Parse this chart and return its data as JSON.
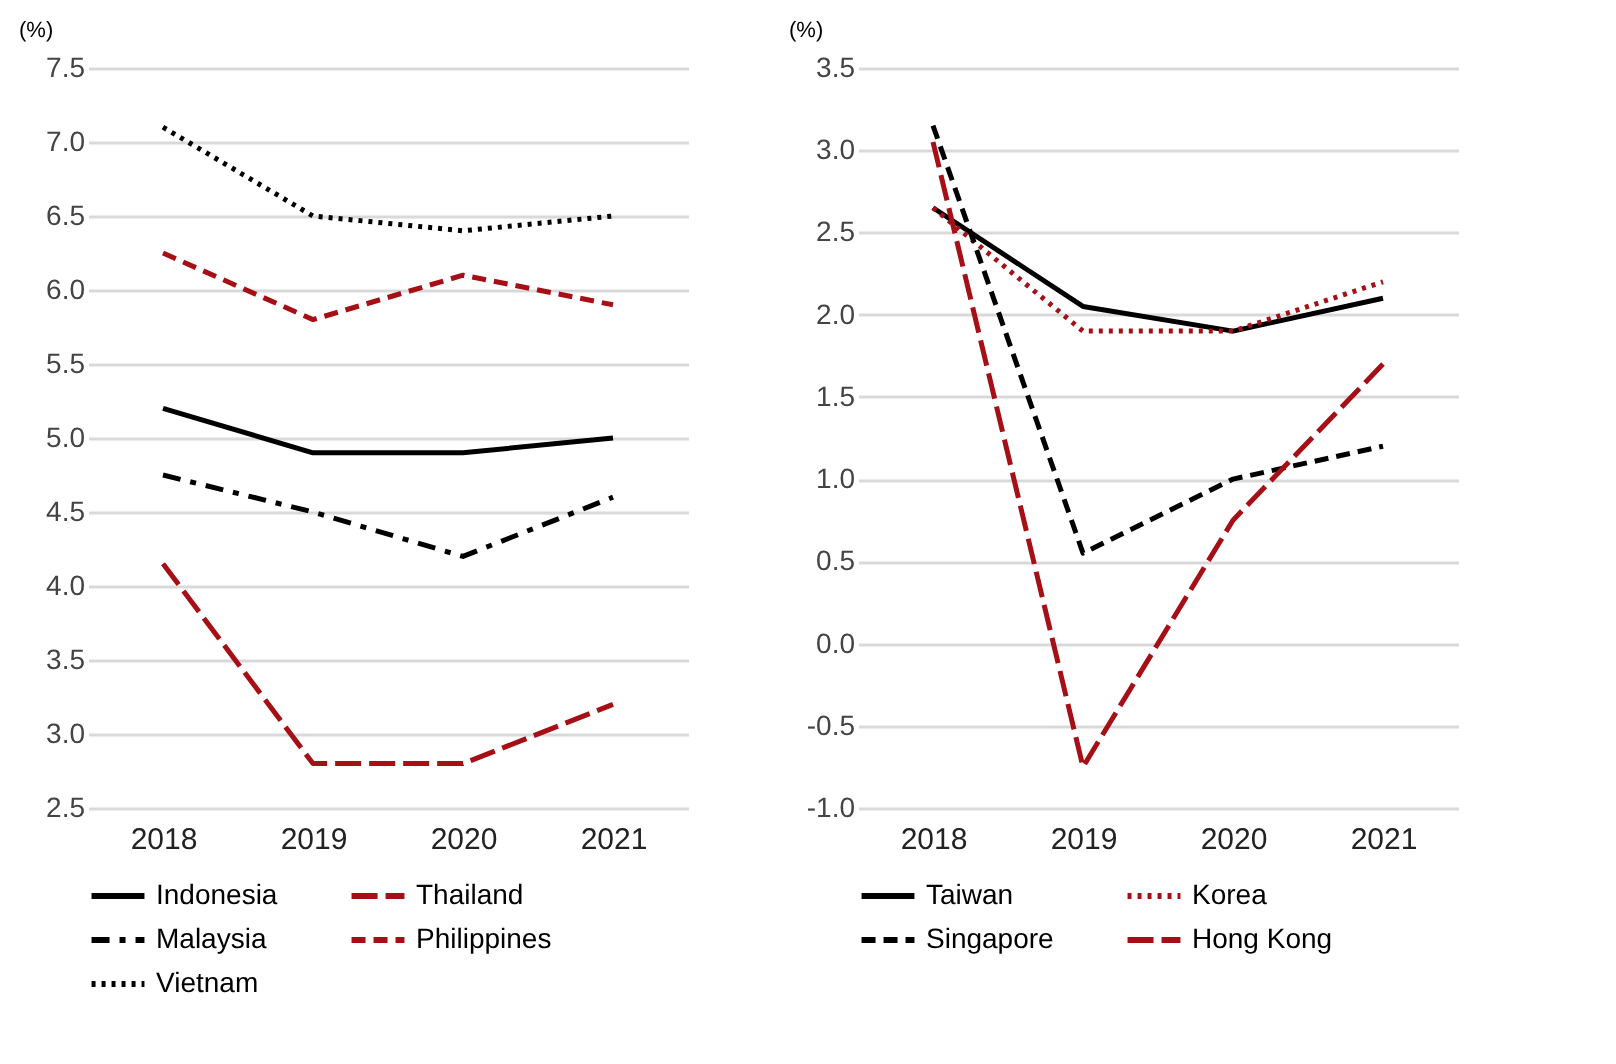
{
  "chart_data": [
    {
      "type": "line",
      "ylabel": "(%)",
      "categories": [
        "2018",
        "2019",
        "2020",
        "2021"
      ],
      "ylim": [
        2.5,
        7.5
      ],
      "yticks": [
        {
          "value": 2.5,
          "label": "2.5"
        },
        {
          "value": 3,
          "label": "3.0"
        },
        {
          "value": 3.5,
          "label": "3.5"
        },
        {
          "value": 4,
          "label": "4.0"
        },
        {
          "value": 4.5,
          "label": "4.5"
        },
        {
          "value": 5,
          "label": "5.0"
        },
        {
          "value": 5.5,
          "label": "5.5"
        },
        {
          "value": 6,
          "label": "6.0"
        },
        {
          "value": 6.5,
          "label": "6.5"
        },
        {
          "value": 7,
          "label": "7.0"
        },
        {
          "value": 7.5,
          "label": "7.5"
        }
      ],
      "grid": "y",
      "legend": "bottom",
      "series": [
        {
          "name": "Indonesia",
          "color": "#000000",
          "line_style": "solid",
          "values": [
            5.2,
            4.9,
            4.9,
            5.0
          ]
        },
        {
          "name": "Thailand",
          "color": "#a50f15",
          "line_style": "longdash",
          "values": [
            4.15,
            2.8,
            2.8,
            3.2
          ]
        },
        {
          "name": "Malaysia",
          "color": "#000000",
          "line_style": "dashdot",
          "values": [
            4.75,
            4.5,
            4.2,
            4.6
          ]
        },
        {
          "name": "Philippines",
          "color": "#a50f15",
          "line_style": "dashed",
          "values": [
            6.25,
            5.8,
            6.1,
            5.9
          ]
        },
        {
          "name": "Vietnam",
          "color": "#000000",
          "line_style": "dotted",
          "values": [
            7.1,
            6.5,
            6.4,
            6.5
          ]
        }
      ]
    },
    {
      "type": "line",
      "ylabel": "(%)",
      "categories": [
        "2018",
        "2019",
        "2020",
        "2021"
      ],
      "ylim": [
        -1,
        3.5
      ],
      "yticks": [
        {
          "value": -1,
          "label": "-1.0"
        },
        {
          "value": -0.5,
          "label": "-0.5"
        },
        {
          "value": 0,
          "label": "0.0"
        },
        {
          "value": 0.5,
          "label": "0.5"
        },
        {
          "value": 1,
          "label": "1.0"
        },
        {
          "value": 1.5,
          "label": "1.5"
        },
        {
          "value": 2,
          "label": "2.0"
        },
        {
          "value": 2.5,
          "label": "2.5"
        },
        {
          "value": 3,
          "label": "3.0"
        },
        {
          "value": 3.5,
          "label": "3.5"
        }
      ],
      "grid": "y",
      "legend": "bottom",
      "series": [
        {
          "name": "Taiwan",
          "color": "#000000",
          "line_style": "solid",
          "values": [
            2.65,
            2.05,
            1.9,
            2.1
          ]
        },
        {
          "name": "Korea",
          "color": "#a50f15",
          "line_style": "dotted",
          "values": [
            2.65,
            1.9,
            1.9,
            2.2
          ]
        },
        {
          "name": "Singapore",
          "color": "#000000",
          "line_style": "dashed",
          "values": [
            3.15,
            0.55,
            1.0,
            1.2
          ]
        },
        {
          "name": "Hong Kong",
          "color": "#a50f15",
          "line_style": "longdash",
          "values": [
            3.05,
            -0.75,
            0.75,
            1.7
          ]
        }
      ]
    }
  ]
}
